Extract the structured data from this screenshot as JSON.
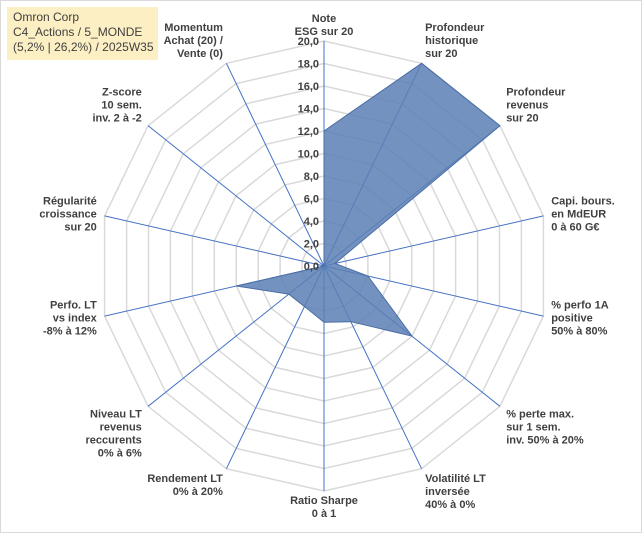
{
  "title_box": {
    "line1": "Omron Corp",
    "line2": "C4_Actions / 5_MONDE",
    "line3": "(5,2% | 26,2%) / 2025W35"
  },
  "chart_data": {
    "type": "radar",
    "title": "",
    "range": [
      0,
      20
    ],
    "tick_step": 2,
    "tick_labels": [
      "0,0",
      "2,0",
      "4,0",
      "6,0",
      "8,0",
      "10,0",
      "12,0",
      "14,0",
      "16,0",
      "18,0",
      "20,0"
    ],
    "grid": true,
    "legend": "none",
    "fill_color": "#5b7fb5",
    "grid_color": "#d9d9d9",
    "spoke_color": "#4472c4",
    "axes": [
      {
        "label": [
          "Note",
          "ESG sur 20"
        ],
        "value": 12.0
      },
      {
        "label": [
          "Profondeur",
          "historique",
          "sur 20"
        ],
        "value": 20.0
      },
      {
        "label": [
          "Profondeur",
          "revenus",
          "sur 20"
        ],
        "value": 20.0
      },
      {
        "label": [
          "Capi. bours.",
          "en MdEUR",
          "0 à 60 G€"
        ],
        "value": 1.0
      },
      {
        "label": [
          "% perfo 1A",
          "positive",
          "50% à 80%"
        ],
        "value": 4.0
      },
      {
        "label": [
          "% perte max.",
          "sur 1 sem.",
          "inv. 50% à 20%"
        ],
        "value": 10.0
      },
      {
        "label": [
          "Volatilité LT",
          "inversée",
          "40% à 0%"
        ],
        "value": 5.5
      },
      {
        "label": [
          "Ratio Sharpe",
          "0 à 1"
        ],
        "value": 5.0
      },
      {
        "label": [
          "Rendement LT",
          "0% à 20%"
        ],
        "value": 4.0
      },
      {
        "label": [
          "Niveau LT",
          "revenus",
          "reccurents",
          "0% à 6%"
        ],
        "value": 4.0
      },
      {
        "label": [
          "Perfo. LT",
          "vs index",
          "-8% à 12%"
        ],
        "value": 8.0
      },
      {
        "label": [
          "Régularité",
          "croissance",
          "sur 20"
        ],
        "value": 0.0
      },
      {
        "label": [
          "Z-score",
          "10 sem.",
          "inv. 2 à -2"
        ],
        "value": 0.0
      },
      {
        "label": [
          "Momentum",
          "Achat (20) /",
          "Vente (0)"
        ],
        "value": 0.0
      }
    ]
  }
}
